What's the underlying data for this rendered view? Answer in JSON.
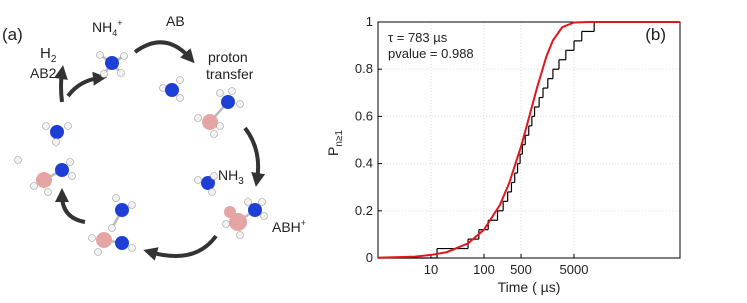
{
  "diagram": {
    "panel_label": "(a)",
    "labels": {
      "h2": {
        "text": "H",
        "sub": "2"
      },
      "ab2": "AB2",
      "nh4": {
        "text": "NH",
        "sub": "4",
        "sup": "+"
      },
      "ab": "AB",
      "proton_transfer": [
        "proton",
        "transfer"
      ],
      "nh3": {
        "text": "NH",
        "sub": "3"
      },
      "abh": {
        "text": "ABH",
        "sup": "+"
      }
    }
  },
  "chart_data": {
    "type": "step",
    "panel_label": "(b)",
    "xlabel": "Time ( µs)",
    "ylabel": "P",
    "ylabel_sub": "n≥1",
    "annotations": [
      "τ = 783  µs",
      "pvalue = 0.988"
    ],
    "xscale": "log",
    "xlim": [
      1,
      500000
    ],
    "xticks": [
      10,
      100,
      500,
      5000
    ],
    "ylim": [
      0,
      1
    ],
    "yticks": [
      0,
      0.2,
      0.4,
      0.6,
      0.8,
      1
    ],
    "grid": true,
    "series": [
      {
        "type": "step",
        "color": "#000000",
        "x": [
          1,
          13,
          50,
          80,
          120,
          180,
          230,
          280,
          330,
          380,
          430,
          480,
          530,
          600,
          700,
          800,
          900,
          1100,
          1300,
          1600,
          2000,
          2600,
          3500,
          5000,
          7000,
          12000
        ],
        "values": [
          0,
          0.04,
          0.08,
          0.12,
          0.16,
          0.2,
          0.24,
          0.28,
          0.32,
          0.36,
          0.4,
          0.44,
          0.48,
          0.52,
          0.56,
          0.6,
          0.64,
          0.68,
          0.72,
          0.76,
          0.8,
          0.84,
          0.88,
          0.92,
          0.96,
          1
        ]
      },
      {
        "type": "line",
        "color": "#e0161c",
        "x": [
          1,
          2,
          5,
          10,
          20,
          50,
          100,
          200,
          300,
          500,
          700,
          1000,
          1500,
          2000,
          3000,
          5000,
          10000,
          100000,
          500000
        ],
        "values": [
          0.001,
          0.003,
          0.006,
          0.013,
          0.025,
          0.062,
          0.12,
          0.225,
          0.318,
          0.472,
          0.591,
          0.721,
          0.853,
          0.922,
          0.978,
          0.998,
          1,
          1,
          1
        ]
      }
    ]
  }
}
